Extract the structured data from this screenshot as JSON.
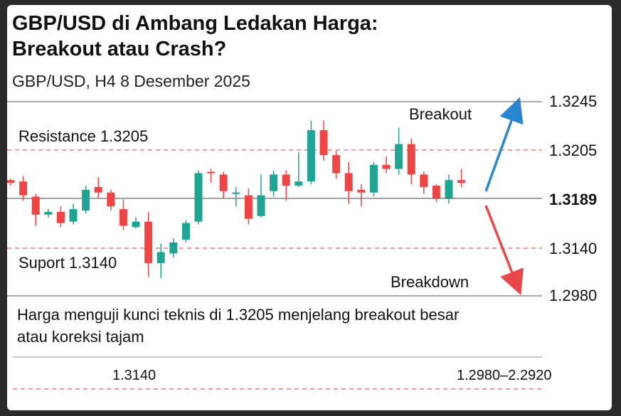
{
  "header": {
    "title": "GBP/USD di Ambang Ledakan Harga: Breakout atau Crash?",
    "subtitle": "GBP/USD, H4 8 Desember 2025"
  },
  "caption": "Harga menguji kunci teknis di 1.3205 menjelang breakout besar atau koreksi tajam",
  "footer": {
    "left_value": "1.3140",
    "right_value": "1.2980–2.2920"
  },
  "colors": {
    "bull": "#1fa393",
    "bear": "#ef4545",
    "up_arrow": "#2b86d0",
    "down_arrow": "#e84848",
    "dashed": "#e06060"
  },
  "chart_data": {
    "type": "candlestick",
    "title": "",
    "y_ticks": [
      "1.3245",
      "1.3205",
      "1.3189",
      "1.3140",
      "1.2980"
    ],
    "current_price": "1.3189",
    "levels": [
      {
        "label": "Resistance 1.3205",
        "value": "1.3205",
        "style": "dashed"
      },
      {
        "label": "Suport 1.3140",
        "value": "1.3140",
        "style": "dashed"
      }
    ],
    "annotations": [
      {
        "label": "Breakout",
        "direction": "up"
      },
      {
        "label": "Breakdown",
        "direction": "down"
      }
    ],
    "candles": [
      {
        "o": 1.3191,
        "c": 1.3189,
        "h": 1.3192,
        "l": 1.3187
      },
      {
        "o": 1.319,
        "c": 1.318,
        "h": 1.3194,
        "l": 1.3176
      },
      {
        "o": 1.3179,
        "c": 1.3166,
        "h": 1.3181,
        "l": 1.3158
      },
      {
        "o": 1.3166,
        "c": 1.3168,
        "h": 1.317,
        "l": 1.3164
      },
      {
        "o": 1.3168,
        "c": 1.316,
        "h": 1.3172,
        "l": 1.3157
      },
      {
        "o": 1.3161,
        "c": 1.317,
        "h": 1.3174,
        "l": 1.3159
      },
      {
        "o": 1.3169,
        "c": 1.3184,
        "h": 1.3187,
        "l": 1.3167
      },
      {
        "o": 1.3186,
        "c": 1.3182,
        "h": 1.3193,
        "l": 1.3178
      },
      {
        "o": 1.3182,
        "c": 1.3172,
        "h": 1.3184,
        "l": 1.3169
      },
      {
        "o": 1.317,
        "c": 1.3158,
        "h": 1.3177,
        "l": 1.3155
      },
      {
        "o": 1.3157,
        "c": 1.3161,
        "h": 1.3164,
        "l": 1.3156
      },
      {
        "o": 1.3161,
        "c": 1.3131,
        "h": 1.3168,
        "l": 1.3121
      },
      {
        "o": 1.3131,
        "c": 1.3139,
        "h": 1.3145,
        "l": 1.312
      },
      {
        "o": 1.3138,
        "c": 1.3146,
        "h": 1.3149,
        "l": 1.3135
      },
      {
        "o": 1.3148,
        "c": 1.316,
        "h": 1.3162,
        "l": 1.3146
      },
      {
        "o": 1.3161,
        "c": 1.3196,
        "h": 1.3198,
        "l": 1.3159
      },
      {
        "o": 1.3197,
        "c": 1.3196,
        "h": 1.3199,
        "l": 1.3189
      },
      {
        "o": 1.3195,
        "c": 1.3183,
        "h": 1.3197,
        "l": 1.3178
      },
      {
        "o": 1.3182,
        "c": 1.3182,
        "h": 1.3186,
        "l": 1.3172
      },
      {
        "o": 1.318,
        "c": 1.3163,
        "h": 1.3185,
        "l": 1.3159
      },
      {
        "o": 1.3165,
        "c": 1.318,
        "h": 1.3195,
        "l": 1.3164
      },
      {
        "o": 1.3183,
        "c": 1.3195,
        "h": 1.3198,
        "l": 1.3179
      },
      {
        "o": 1.3195,
        "c": 1.3187,
        "h": 1.3198,
        "l": 1.3176
      },
      {
        "o": 1.3187,
        "c": 1.319,
        "h": 1.3211,
        "l": 1.3186
      },
      {
        "o": 1.319,
        "c": 1.3227,
        "h": 1.3234,
        "l": 1.3188
      },
      {
        "o": 1.3227,
        "c": 1.3209,
        "h": 1.3234,
        "l": 1.3205
      },
      {
        "o": 1.3209,
        "c": 1.3196,
        "h": 1.3212,
        "l": 1.3192
      },
      {
        "o": 1.3196,
        "c": 1.3183,
        "h": 1.3204,
        "l": 1.3174
      },
      {
        "o": 1.3184,
        "c": 1.3182,
        "h": 1.3188,
        "l": 1.3172
      },
      {
        "o": 1.3182,
        "c": 1.3202,
        "h": 1.3204,
        "l": 1.3179
      },
      {
        "o": 1.3202,
        "c": 1.3199,
        "h": 1.3208,
        "l": 1.3196
      },
      {
        "o": 1.3199,
        "c": 1.3217,
        "h": 1.3229,
        "l": 1.3195
      },
      {
        "o": 1.3217,
        "c": 1.3195,
        "h": 1.3221,
        "l": 1.3188
      },
      {
        "o": 1.3195,
        "c": 1.3186,
        "h": 1.3197,
        "l": 1.3181
      },
      {
        "o": 1.3187,
        "c": 1.3178,
        "h": 1.3188,
        "l": 1.3175
      },
      {
        "o": 1.3178,
        "c": 1.3191,
        "h": 1.3195,
        "l": 1.3174
      },
      {
        "o": 1.3191,
        "c": 1.3189,
        "h": 1.3199,
        "l": 1.3186
      }
    ]
  }
}
